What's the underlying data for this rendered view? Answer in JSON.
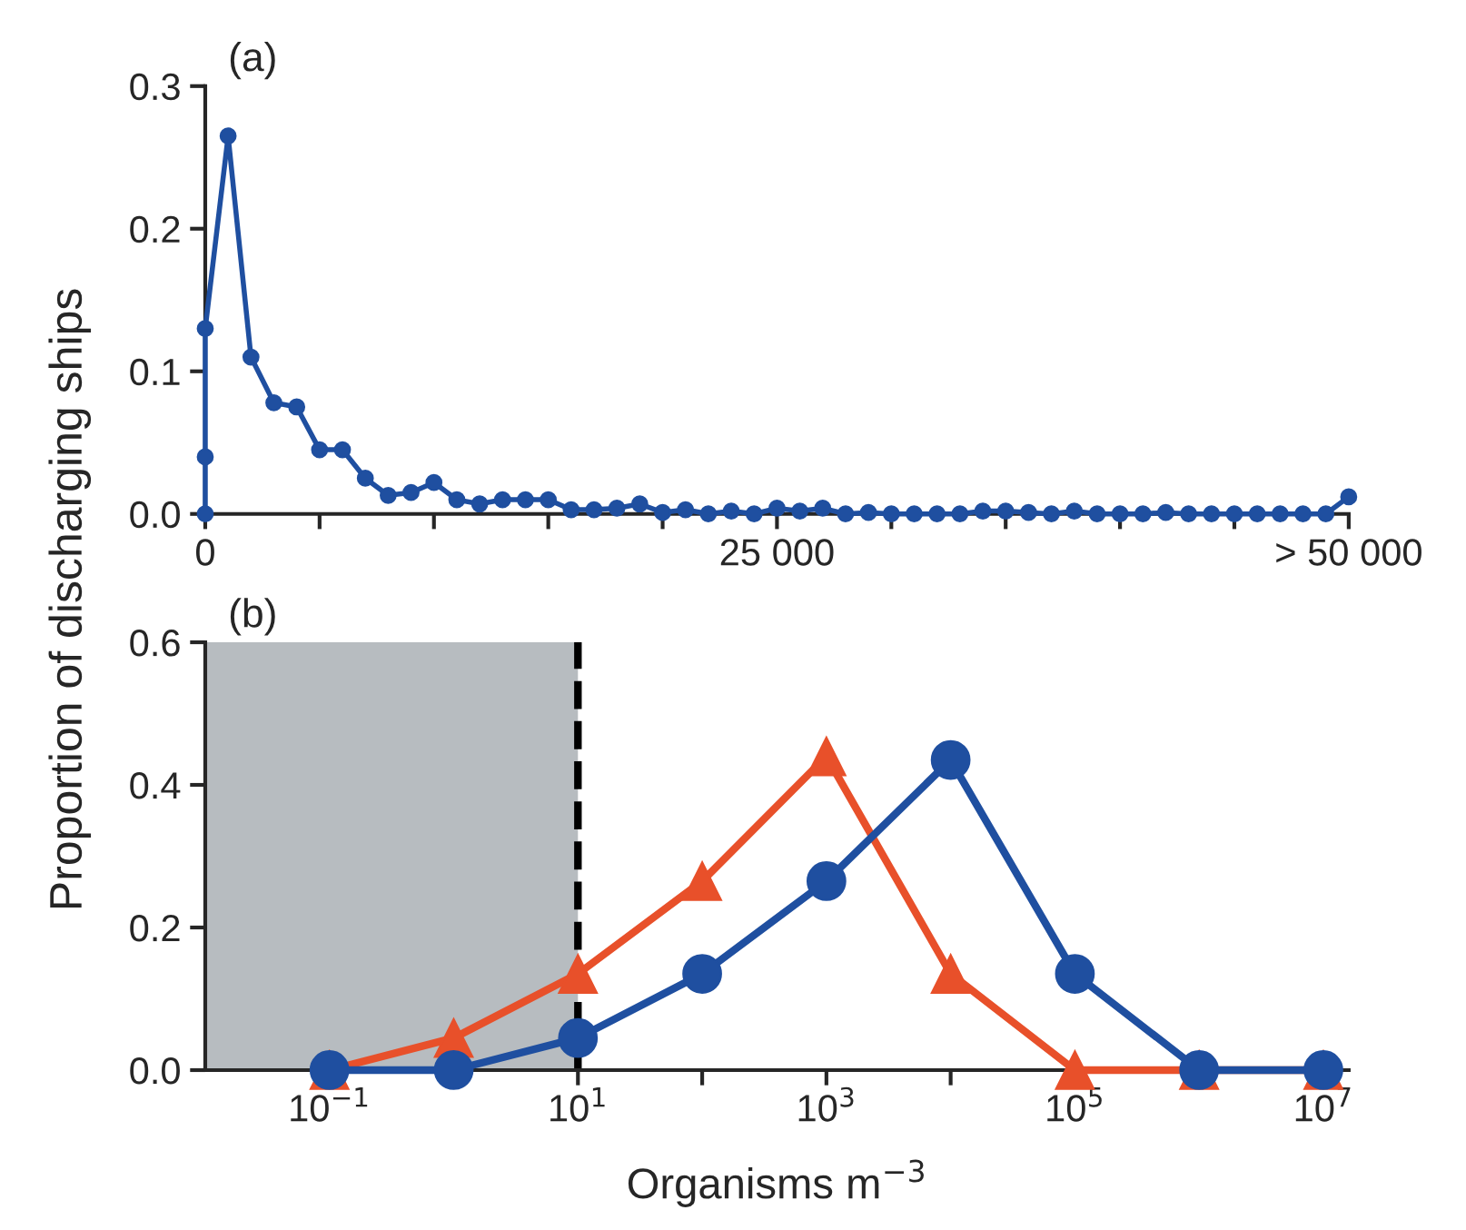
{
  "chart_data": [
    {
      "type": "line",
      "title": "(a)",
      "marker": "circle",
      "x": [
        0,
        0,
        0,
        1000,
        2000,
        3000,
        4000,
        5000,
        6000,
        7000,
        8000,
        9000,
        10000,
        11000,
        12000,
        13000,
        14000,
        15000,
        16000,
        17000,
        18000,
        19000,
        20000,
        21000,
        22000,
        23000,
        24000,
        25000,
        26000,
        27000,
        28000,
        29000,
        30000,
        31000,
        32000,
        33000,
        34000,
        35000,
        36000,
        37000,
        38000,
        39000,
        40000,
        41000,
        42000,
        43000,
        44000,
        45000,
        46000,
        47000,
        48000,
        49000,
        50000
      ],
      "series": [
        {
          "color": "#1f4fa0",
          "values": [
            0.0,
            0.04,
            0.13,
            0.265,
            0.11,
            0.078,
            0.075,
            0.045,
            0.045,
            0.025,
            0.013,
            0.015,
            0.022,
            0.01,
            0.007,
            0.01,
            0.01,
            0.01,
            0.003,
            0.003,
            0.004,
            0.007,
            0.001,
            0.003,
            0.0,
            0.002,
            0.0,
            0.004,
            0.002,
            0.004,
            0.0,
            0.001,
            0.0,
            0.0,
            0.0,
            0.0,
            0.002,
            0.002,
            0.001,
            0.0,
            0.002,
            0.0,
            0.0,
            0.0,
            0.001,
            0.0,
            0.0,
            0.0,
            0.0,
            0.0,
            0.0,
            0.0,
            0.012
          ]
        }
      ],
      "xlim": [
        0,
        50000
      ],
      "ylim": [
        0,
        0.3
      ],
      "xticks": [
        0,
        {
          "value": 5000,
          "label": null
        },
        {
          "value": 10000,
          "label": null
        },
        {
          "value": 15000,
          "label": null
        },
        {
          "value": 20000,
          "label": null
        },
        {
          "value": 25000,
          "label": "25 000"
        },
        {
          "value": 30000,
          "label": null
        },
        {
          "value": 35000,
          "label": null
        },
        {
          "value": 40000,
          "label": null
        },
        {
          "value": 45000,
          "label": null
        },
        {
          "value": 50000,
          "label": "> 50 000"
        }
      ],
      "yticks": [
        {
          "value": 0,
          "label": "0.0"
        },
        0.1,
        0.2,
        0.3
      ],
      "grid": false,
      "legend": false
    },
    {
      "type": "line",
      "title": "(b)",
      "xlabel": "Organisms m$^{−3}$",
      "ylabel": "Proportion of discharging ships",
      "log": "x",
      "marker": "circle",
      "x": [
        0.1,
        1,
        10,
        100,
        1000,
        10000,
        100000,
        1000000,
        10000000
      ],
      "series": [
        {
          "color": "#e8502a",
          "marker": "triangle",
          "values": [
            0.0,
            0.045,
            0.135,
            0.265,
            0.44,
            0.135,
            0.0,
            0.0,
            0.0
          ]
        },
        {
          "color": "#1f4fa0",
          "marker": "circle",
          "values": [
            0.0,
            0.0,
            0.045,
            0.135,
            0.265,
            0.435,
            0.135,
            0.0,
            0.0
          ]
        }
      ],
      "xlim": [
        0.01,
        16000000
      ],
      "ylim": [
        0,
        0.6
      ],
      "xticks": [
        {
          "value": 0.1,
          "label": "10$^{−1}$"
        },
        {
          "value": 1,
          "label": null
        },
        {
          "value": 10,
          "label": "10$^{1}$"
        },
        {
          "value": 100,
          "label": null
        },
        {
          "value": 1000,
          "label": "10$^{3}$"
        },
        {
          "value": 10000,
          "label": null
        },
        {
          "value": 100000,
          "label": "10$^{5}$"
        },
        {
          "value": 1000000,
          "label": null
        },
        {
          "value": 10000000,
          "label": "10$^{7}$"
        }
      ],
      "yticks": [
        {
          "value": 0,
          "label": "0.0"
        },
        0.2,
        0.4,
        0.6
      ],
      "bands": [
        {
          "axis": "x",
          "from": 0.01,
          "to": 10,
          "color": "#b7bcc0"
        }
      ],
      "ref_lines": [
        {
          "axis": "x",
          "value": 10,
          "color": "#000000",
          "line_style": "dashed"
        }
      ],
      "grid": false,
      "legend": false
    }
  ]
}
